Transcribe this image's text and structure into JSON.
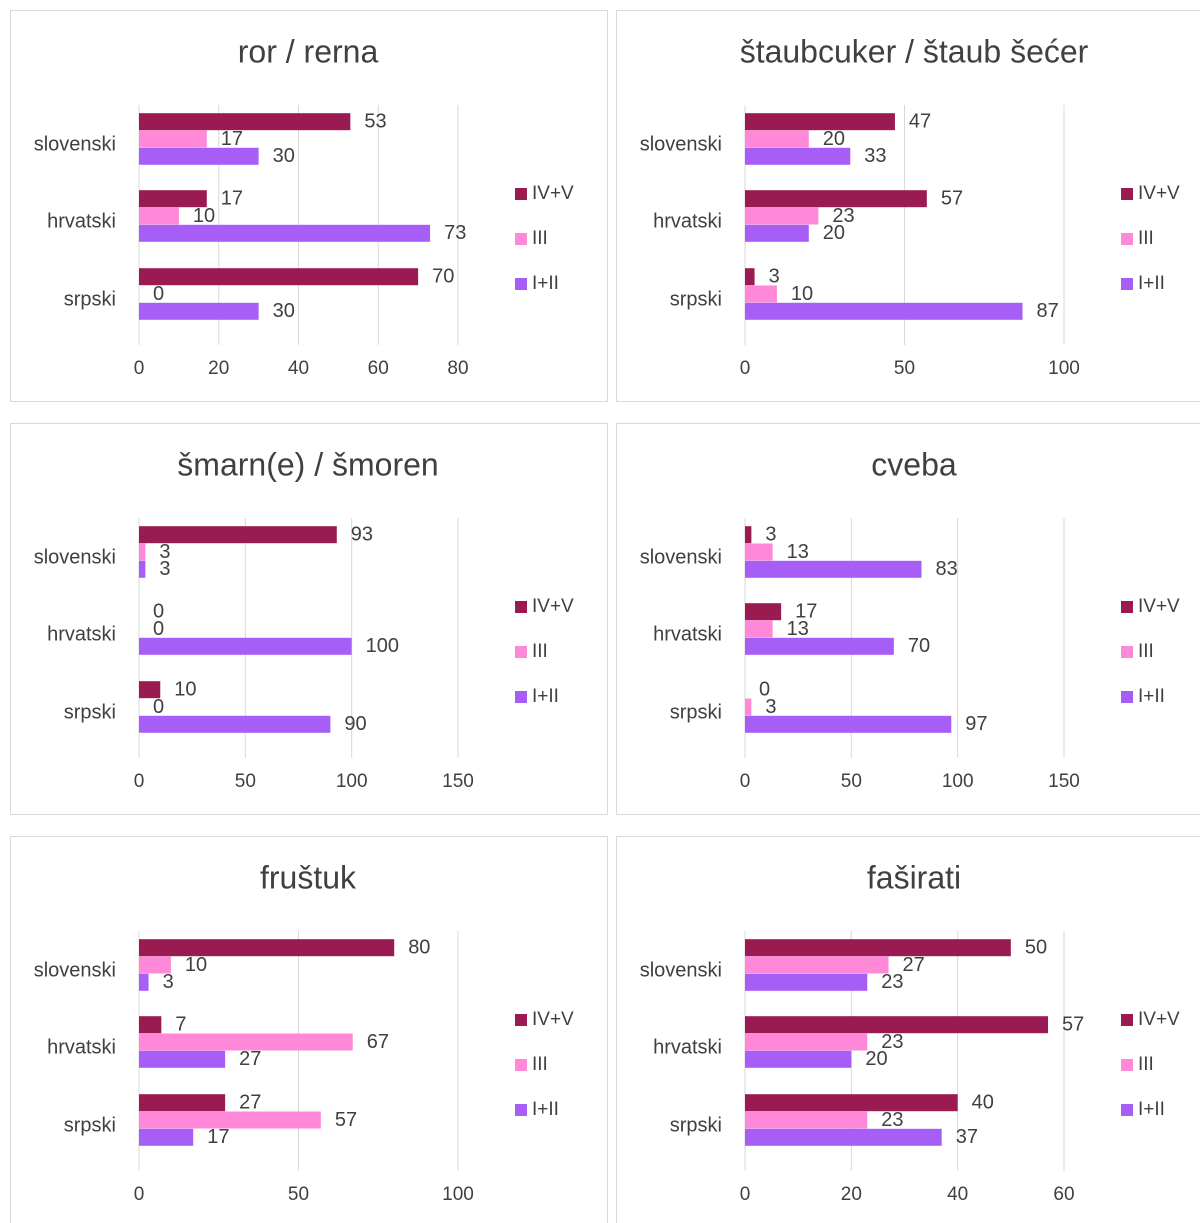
{
  "chart_data": [
    {
      "type": "bar",
      "orientation": "horizontal",
      "title": "ror / rerna",
      "categories": [
        "slovenski",
        "hrvatski",
        "srpski"
      ],
      "series": [
        {
          "name": "IV+V",
          "color": "#9a1a52",
          "values": [
            53,
            17,
            70
          ]
        },
        {
          "name": "III",
          "color": "#ff88d8",
          "values": [
            17,
            10,
            0
          ]
        },
        {
          "name": "I+II",
          "color": "#a65ef6",
          "values": [
            30,
            73,
            30
          ]
        }
      ],
      "xlim": [
        0,
        80
      ],
      "xticks": [
        0,
        20,
        40,
        60,
        80
      ],
      "grid": true,
      "legend": "right"
    },
    {
      "type": "bar",
      "orientation": "horizontal",
      "title": "štaubcuker / štaub šećer",
      "categories": [
        "slovenski",
        "hrvatski",
        "srpski"
      ],
      "series": [
        {
          "name": "IV+V",
          "color": "#9a1a52",
          "values": [
            47,
            57,
            3
          ]
        },
        {
          "name": "III",
          "color": "#ff88d8",
          "values": [
            20,
            23,
            10
          ]
        },
        {
          "name": "I+II",
          "color": "#a65ef6",
          "values": [
            33,
            20,
            87
          ]
        }
      ],
      "xlim": [
        0,
        100
      ],
      "xticks": [
        0,
        50,
        100
      ],
      "grid": true,
      "legend": "right"
    },
    {
      "type": "bar",
      "orientation": "horizontal",
      "title": "šmarn(e) / šmoren",
      "categories": [
        "slovenski",
        "hrvatski",
        "srpski"
      ],
      "series": [
        {
          "name": "IV+V",
          "color": "#9a1a52",
          "values": [
            93,
            0,
            10
          ]
        },
        {
          "name": "III",
          "color": "#ff88d8",
          "values": [
            3,
            0,
            0
          ]
        },
        {
          "name": "I+II",
          "color": "#a65ef6",
          "values": [
            3,
            100,
            90
          ]
        }
      ],
      "xlim": [
        0,
        150
      ],
      "xticks": [
        0,
        50,
        100,
        150
      ],
      "grid": true,
      "legend": "right"
    },
    {
      "type": "bar",
      "orientation": "horizontal",
      "title": "cveba",
      "categories": [
        "slovenski",
        "hrvatski",
        "srpski"
      ],
      "series": [
        {
          "name": "IV+V",
          "color": "#9a1a52",
          "values": [
            3,
            17,
            0
          ]
        },
        {
          "name": "III",
          "color": "#ff88d8",
          "values": [
            13,
            13,
            3
          ]
        },
        {
          "name": "I+II",
          "color": "#a65ef6",
          "values": [
            83,
            70,
            97
          ]
        }
      ],
      "xlim": [
        0,
        150
      ],
      "xticks": [
        0,
        50,
        100,
        150
      ],
      "grid": true,
      "legend": "right"
    },
    {
      "type": "bar",
      "orientation": "horizontal",
      "title": "fruštuk",
      "categories": [
        "slovenski",
        "hrvatski",
        "srpski"
      ],
      "series": [
        {
          "name": "IV+V",
          "color": "#9a1a52",
          "values": [
            80,
            7,
            27
          ]
        },
        {
          "name": "III",
          "color": "#ff88d8",
          "values": [
            10,
            67,
            57
          ]
        },
        {
          "name": "I+II",
          "color": "#a65ef6",
          "values": [
            3,
            27,
            17
          ]
        }
      ],
      "xlim": [
        0,
        100
      ],
      "xticks": [
        0,
        50,
        100
      ],
      "grid": true,
      "legend": "right"
    },
    {
      "type": "bar",
      "orientation": "horizontal",
      "title": "faširati",
      "categories": [
        "slovenski",
        "hrvatski",
        "srpski"
      ],
      "series": [
        {
          "name": "IV+V",
          "color": "#9a1a52",
          "values": [
            50,
            57,
            40
          ]
        },
        {
          "name": "III",
          "color": "#ff88d8",
          "values": [
            27,
            23,
            23
          ]
        },
        {
          "name": "I+II",
          "color": "#a65ef6",
          "values": [
            23,
            20,
            37
          ]
        }
      ],
      "xlim": [
        0,
        60
      ],
      "xticks": [
        0,
        20,
        40,
        60
      ],
      "grid": true,
      "legend": "right"
    }
  ]
}
